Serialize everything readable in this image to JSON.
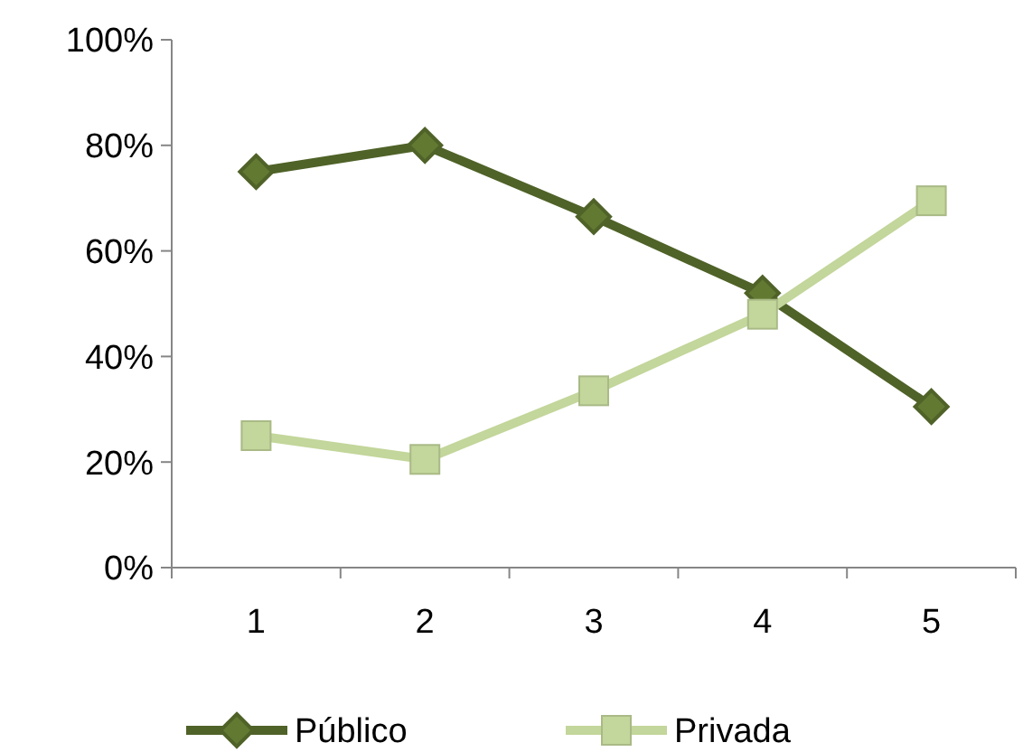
{
  "chart_data": {
    "type": "line",
    "categories": [
      "1",
      "2",
      "3",
      "4",
      "5"
    ],
    "series": [
      {
        "name": "Público",
        "color": "#4f6228",
        "values": [
          75,
          80,
          66.5,
          52,
          30.5
        ],
        "marker": "diamond"
      },
      {
        "name": "Privada",
        "color": "#c3d69b",
        "values": [
          25,
          20.5,
          33.5,
          48,
          69.5
        ],
        "marker": "square"
      }
    ],
    "ylim": [
      0,
      100
    ],
    "yticks": [
      {
        "value": 0,
        "label": "0%"
      },
      {
        "value": 20,
        "label": "20%"
      },
      {
        "value": 40,
        "label": "40%"
      },
      {
        "value": 60,
        "label": "60%"
      },
      {
        "value": 80,
        "label": "80%"
      },
      {
        "value": 100,
        "label": "100%"
      }
    ],
    "grid": false,
    "legend": "bottom",
    "line_style": "solid"
  }
}
